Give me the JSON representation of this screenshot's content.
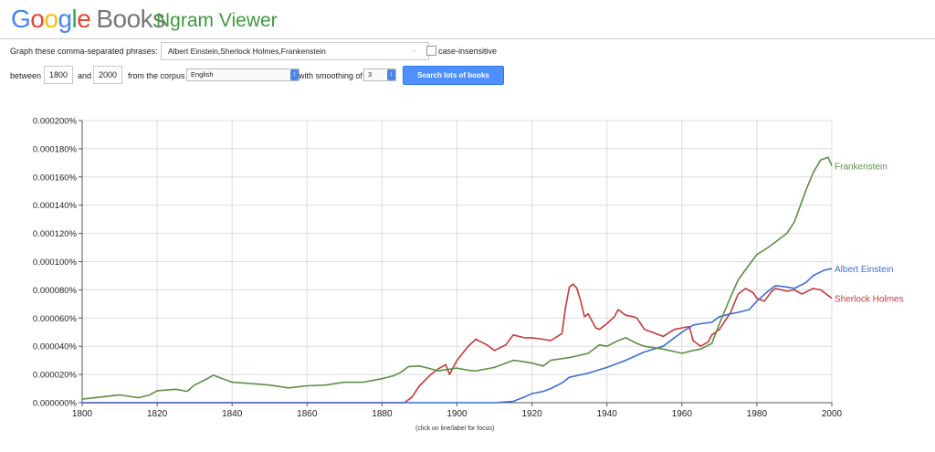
{
  "header": {
    "logo_letters": [
      "G",
      "o",
      "o",
      "g",
      "l",
      "e"
    ],
    "logo_books": "Books",
    "subtitle": "Ngram Viewer"
  },
  "query": {
    "phrases_label": "Graph these comma-separated phrases:",
    "phrases_value": "Albert Einstein,Sherlock Holmes,Frankenstein",
    "case_insensitive_label": "case-insensitive",
    "case_insensitive_checked": false,
    "between_label": "between",
    "year_start": "1800",
    "and_label": "and",
    "year_end": "2000",
    "corpus_label": "from the corpus",
    "corpus_value": "English",
    "smoothing_label": "with smoothing of",
    "smoothing_value": "3",
    "smoothing_suffix": ".",
    "search_button": "Search lots of books"
  },
  "footnote": "(click on line/label for focus)",
  "colors": {
    "frankenstein": "#5c8f45",
    "einstein": "#3c6ed6",
    "holmes": "#c53a3a",
    "grid": "#dcdcdc"
  },
  "chart_data": {
    "type": "line",
    "title": "",
    "xlabel": "",
    "ylabel": "",
    "xlim": [
      1800,
      2000
    ],
    "ylim": [
      0,
      0.0002
    ],
    "x_ticks": [
      "1800",
      "1820",
      "1840",
      "1860",
      "1880",
      "1900",
      "1920",
      "1940",
      "1960",
      "1980",
      "2000"
    ],
    "y_ticks": [
      "0.000000%",
      "0.000020%",
      "0.000040%",
      "0.000060%",
      "0.000080%",
      "0.000100%",
      "0.000120%",
      "0.000140%",
      "0.000160%",
      "0.000180%",
      "0.000200%"
    ],
    "grid": true,
    "legend": "line-end labels",
    "series": [
      {
        "name": "Frankenstein",
        "color": "#5c8f45",
        "x": [
          1800,
          1805,
          1810,
          1815,
          1818,
          1820,
          1825,
          1828,
          1830,
          1833,
          1835,
          1837,
          1840,
          1845,
          1850,
          1855,
          1860,
          1865,
          1870,
          1875,
          1880,
          1883,
          1885,
          1887,
          1890,
          1893,
          1895,
          1900,
          1903,
          1905,
          1910,
          1915,
          1918,
          1920,
          1923,
          1925,
          1930,
          1935,
          1938,
          1940,
          1943,
          1945,
          1948,
          1950,
          1955,
          1960,
          1963,
          1965,
          1968,
          1970,
          1973,
          1975,
          1978,
          1980,
          1983,
          1985,
          1988,
          1990,
          1993,
          1995,
          1997,
          1999,
          2000
        ],
        "y": [
          2.5e-06,
          4e-06,
          5.5e-06,
          3.5e-06,
          5.5e-06,
          8.5e-06,
          9.5e-06,
          8e-06,
          1.25e-05,
          1.65e-05,
          1.95e-05,
          1.75e-05,
          1.45e-05,
          1.35e-05,
          1.25e-05,
          1.05e-05,
          1.2e-05,
          1.25e-05,
          1.45e-05,
          1.45e-05,
          1.7e-05,
          1.9e-05,
          2.15e-05,
          2.55e-05,
          2.6e-05,
          2.4e-05,
          2.25e-05,
          2.45e-05,
          2.3e-05,
          2.25e-05,
          2.5e-05,
          3e-05,
          2.9e-05,
          2.8e-05,
          2.6e-05,
          3e-05,
          3.2e-05,
          3.5e-05,
          4.1e-05,
          4e-05,
          4.4e-05,
          4.6e-05,
          4.2e-05,
          4e-05,
          3.8e-05,
          3.5e-05,
          3.7e-05,
          3.8e-05,
          4.2e-05,
          5.6e-05,
          7.5e-05,
          8.7e-05,
          9.8e-05,
          0.000105,
          0.00011,
          0.000114,
          0.00012,
          0.000128,
          0.00015,
          0.000163,
          0.000172,
          0.000174,
          0.000168
        ]
      },
      {
        "name": "Albert Einstein",
        "color": "#3c6ed6",
        "x": [
          1800,
          1900,
          1910,
          1915,
          1918,
          1920,
          1923,
          1925,
          1928,
          1930,
          1935,
          1940,
          1945,
          1950,
          1955,
          1960,
          1963,
          1965,
          1968,
          1970,
          1973,
          1975,
          1978,
          1980,
          1983,
          1985,
          1988,
          1990,
          1993,
          1995,
          1998,
          2000
        ],
        "y": [
          0,
          0,
          0,
          1e-06,
          4e-06,
          6.5e-06,
          8e-06,
          1e-05,
          1.4e-05,
          1.8e-05,
          2.1e-05,
          2.5e-05,
          3e-05,
          3.6e-05,
          4e-05,
          5e-05,
          5.5e-05,
          5.6e-05,
          5.7e-05,
          6.1e-05,
          6.3e-05,
          6.4e-05,
          6.6e-05,
          7.2e-05,
          7.9e-05,
          8.3e-05,
          8.2e-05,
          8.1e-05,
          8.5e-05,
          9e-05,
          9.4e-05,
          9.5e-05
        ]
      },
      {
        "name": "Sherlock Holmes",
        "color": "#c53a3a",
        "x": [
          1800,
          1886,
          1888,
          1890,
          1893,
          1895,
          1897,
          1898,
          1900,
          1903,
          1905,
          1908,
          1910,
          1913,
          1915,
          1918,
          1920,
          1923,
          1925,
          1928,
          1929,
          1930,
          1931,
          1932,
          1933,
          1934,
          1935,
          1937,
          1938,
          1940,
          1942,
          1943,
          1945,
          1947,
          1948,
          1950,
          1953,
          1955,
          1958,
          1960,
          1962,
          1963,
          1965,
          1967,
          1968,
          1970,
          1973,
          1975,
          1977,
          1979,
          1980,
          1982,
          1984,
          1985,
          1988,
          1990,
          1992,
          1995,
          1997,
          2000
        ],
        "y": [
          0,
          0,
          4e-06,
          1.2e-05,
          2e-05,
          2.4e-05,
          2.7e-05,
          2e-05,
          3e-05,
          4e-05,
          4.5e-05,
          4.1e-05,
          3.7e-05,
          4.1e-05,
          4.8e-05,
          4.6e-05,
          4.6e-05,
          4.5e-05,
          4.4e-05,
          4.9e-05,
          6.8e-05,
          8.2e-05,
          8.4e-05,
          8.1e-05,
          7.2e-05,
          6.1e-05,
          6.3e-05,
          5.3e-05,
          5.2e-05,
          5.6e-05,
          6.1e-05,
          6.6e-05,
          6.2e-05,
          6.1e-05,
          6e-05,
          5.2e-05,
          4.9e-05,
          4.7e-05,
          5.2e-05,
          5.3e-05,
          5.4e-05,
          4.4e-05,
          4e-05,
          4.3e-05,
          4.8e-05,
          5.2e-05,
          6.4e-05,
          7.7e-05,
          8.1e-05,
          7.8e-05,
          7.4e-05,
          7.2e-05,
          7.9e-05,
          8.1e-05,
          7.9e-05,
          8e-05,
          7.7e-05,
          8.1e-05,
          8e-05,
          7.4e-05
        ]
      }
    ]
  }
}
